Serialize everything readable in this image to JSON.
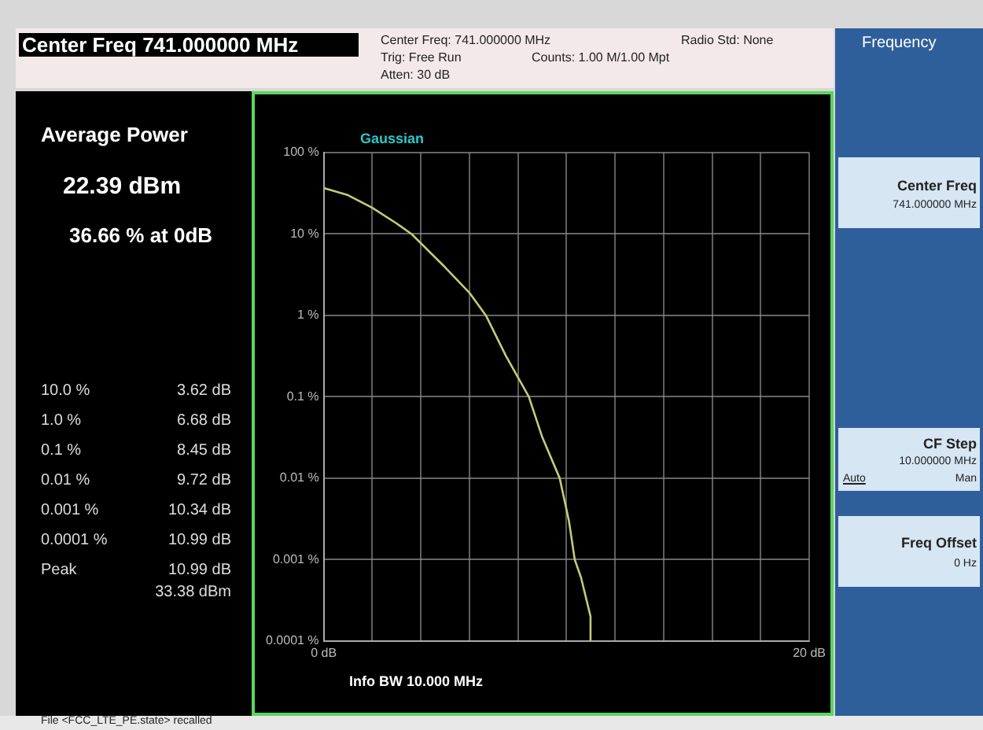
{
  "chart_data": {
    "type": "line",
    "title": null,
    "x": [
      0,
      1,
      2,
      3,
      3.62,
      5,
      6,
      6.68,
      7.5,
      8.45,
      9,
      9.72,
      10.1,
      10.34,
      10.6,
      10.99,
      10.99
    ],
    "series": [
      {
        "color": "#c8c87a",
        "values": [
          36.66,
          30,
          21,
          13.5,
          10,
          3.9,
          1.9,
          1,
          0.32,
          0.1,
          0.032,
          0.01,
          0.003,
          0.001,
          0.0006,
          0.0002,
          0.0001
        ]
      }
    ],
    "xlim": [
      0,
      20
    ],
    "xticks": [
      {
        "value": 0,
        "label": "0 dB"
      },
      {
        "value": 2,
        "label": null
      },
      {
        "value": 4,
        "label": null
      },
      {
        "value": 6,
        "label": null
      },
      {
        "value": 8,
        "label": null
      },
      {
        "value": 10,
        "label": null
      },
      {
        "value": 12,
        "label": null
      },
      {
        "value": 14,
        "label": null
      },
      {
        "value": 16,
        "label": null
      },
      {
        "value": 18,
        "label": null
      },
      {
        "value": 20,
        "label": "20 dB"
      }
    ],
    "ylim": [
      0.0001,
      100
    ],
    "yticks": [
      {
        "value": 100,
        "label": "100 %"
      },
      {
        "value": 10,
        "label": "10 %"
      },
      {
        "value": 1,
        "label": "1 %"
      },
      {
        "value": 0.1,
        "label": "0.1 %"
      },
      {
        "value": 0.01,
        "label": "0.01 %"
      },
      {
        "value": 0.001,
        "label": "0.001 %"
      },
      {
        "value": 0.0001,
        "label": "0.0001 %"
      }
    ],
    "log": "y",
    "grid": true,
    "legend": false,
    "marker": "none",
    "line_style": "solid",
    "annotations": [
      "Center Freq 741.000000 MHz",
      "Center Freq: 741.000000 MHz",
      "Trig: Free Run",
      "Atten: 30 dB",
      "Counts: 1.00 M/1.00 Mpt",
      "Radio Std: None",
      "Frequency",
      "Center Freq",
      "741.000000 MHz",
      "CF Step",
      "10.000000 MHz",
      "Auto",
      "Man",
      "Freq Offset",
      "0 Hz",
      "Average Power",
      "22.39 dBm",
      "36.66 % at 0dB",
      "10.0 %",
      "3.62 dB",
      "1.0 %",
      "6.68 dB",
      "0.1 %",
      "8.45 dB",
      "0.01 %",
      "9.72 dB",
      "0.001 %",
      "10.34 dB",
      "0.0001 %",
      "10.99 dB",
      "Peak",
      "10.99 dB",
      "33.38 dBm",
      "Gaussian",
      "Info BW 10.000 MHz",
      "File <FCC_LTE_PE.state> recalled"
    ]
  }
}
